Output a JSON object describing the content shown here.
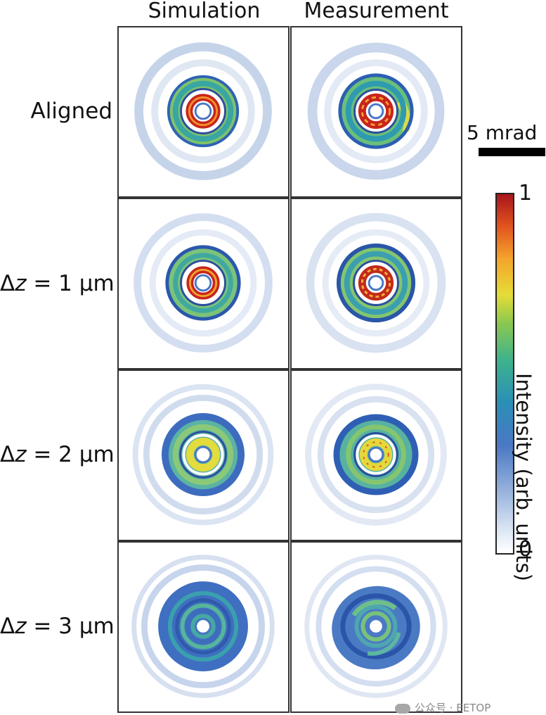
{
  "columns": [
    "Simulation",
    "Measurement"
  ],
  "rows": [
    {
      "label": "Aligned",
      "delta": null,
      "unit": null
    },
    {
      "label": "Δz = 1 μm",
      "prefix": "Δ",
      "var": "z",
      "rest": " = 1 μm"
    },
    {
      "label": "Δz = 2 μm",
      "prefix": "Δ",
      "var": "z",
      "rest": " = 2 μm"
    },
    {
      "label": "Δz = 3 μm",
      "prefix": "Δ",
      "var": "z",
      "rest": " = 3 μm"
    }
  ],
  "scalebar": {
    "label": "5 mrad"
  },
  "colorbar": {
    "min": "0",
    "max": "1",
    "label": "Intensity (arb. units)"
  },
  "watermark": "公众号 · EETOP",
  "colors": {
    "white": "#ffffff",
    "light_blue": "#b6c9e6",
    "blue": "#3f6fc0",
    "teal": "#2f9bb0",
    "green": "#6fc06d",
    "yellow": "#e7dd3a",
    "orange": "#f39a2c",
    "red": "#c4261d"
  }
}
